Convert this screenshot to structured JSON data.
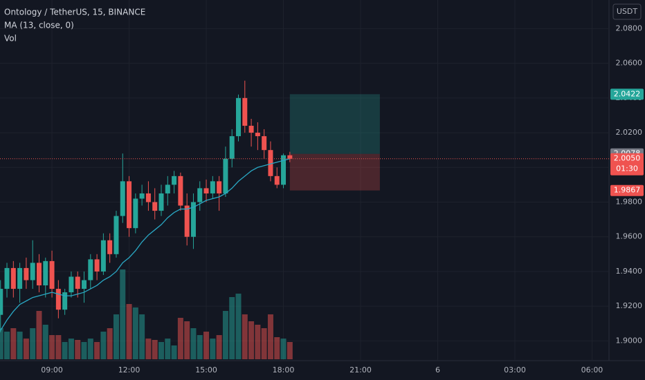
{
  "chart_data": {
    "type": "candlestick",
    "title": "Ontology / TetherUS, 15, BINANCE",
    "ma_label": "MA (13, close, 0)",
    "volume_label": "Vol",
    "currency": "USDT",
    "up_color": "#26a69a",
    "down_color": "#ef5350",
    "ma_color": "#2aa8c4",
    "grid": true,
    "x": [
      7,
      7.25,
      7.5,
      7.75,
      8,
      8.25,
      8.5,
      8.75,
      9,
      9.25,
      9.5,
      9.75,
      10,
      10.25,
      10.5,
      10.75,
      11,
      11.25,
      11.5,
      11.75,
      12,
      12.25,
      12.5,
      12.75,
      13,
      13.25,
      13.5,
      13.75,
      14,
      14.25,
      14.5,
      14.75,
      15,
      15.25,
      15.5,
      15.75,
      16,
      16.25,
      16.5,
      16.75,
      17,
      17.25,
      17.5,
      17.75,
      18,
      18.25
    ],
    "open": [
      1.915,
      1.93,
      1.942,
      1.93,
      1.942,
      1.935,
      1.945,
      1.932,
      1.946,
      1.93,
      1.918,
      1.928,
      1.937,
      1.93,
      1.935,
      1.947,
      1.94,
      1.958,
      1.95,
      1.972,
      1.992,
      1.965,
      1.982,
      1.985,
      1.98,
      1.975,
      1.985,
      1.99,
      1.995,
      1.978,
      1.96,
      1.98,
      1.988,
      1.985,
      1.992,
      1.985,
      2.005,
      2.018,
      2.04,
      2.024,
      2.02,
      2.018,
      2.01,
      1.995,
      1.99,
      2.007
    ],
    "high": [
      1.935,
      1.945,
      1.946,
      1.945,
      1.948,
      1.958,
      1.95,
      1.948,
      1.952,
      1.935,
      1.93,
      1.94,
      1.94,
      1.94,
      1.95,
      1.95,
      1.962,
      1.962,
      1.975,
      2.008,
      1.995,
      1.985,
      1.99,
      1.992,
      1.988,
      1.99,
      1.995,
      1.998,
      1.997,
      1.985,
      1.985,
      1.992,
      1.993,
      1.995,
      1.995,
      2.012,
      2.022,
      2.042,
      2.05,
      2.028,
      2.026,
      2.022,
      2.015,
      2,
      2.008,
      2.009
    ],
    "low": [
      1.905,
      1.925,
      1.925,
      1.922,
      1.93,
      1.93,
      1.928,
      1.925,
      1.925,
      1.913,
      1.915,
      1.925,
      1.925,
      1.922,
      1.93,
      1.935,
      1.938,
      1.945,
      1.948,
      1.968,
      1.96,
      1.962,
      1.978,
      1.975,
      1.97,
      1.972,
      1.978,
      1.985,
      1.975,
      1.955,
      1.953,
      1.975,
      1.98,
      1.982,
      1.975,
      1.983,
      2,
      2.015,
      2.02,
      2.012,
      2.01,
      2.005,
      1.992,
      1.988,
      1.988,
      2.003
    ],
    "close": [
      1.93,
      1.942,
      1.93,
      1.942,
      1.935,
      1.945,
      1.932,
      1.946,
      1.93,
      1.918,
      1.928,
      1.937,
      1.93,
      1.935,
      1.947,
      1.94,
      1.958,
      1.95,
      1.972,
      1.992,
      1.965,
      1.982,
      1.985,
      1.98,
      1.975,
      1.985,
      1.99,
      1.995,
      1.978,
      1.96,
      1.98,
      1.988,
      1.985,
      1.992,
      1.985,
      2.005,
      2.018,
      2.04,
      2.024,
      2.02,
      2.018,
      2.01,
      1.995,
      1.99,
      2.007,
      2.005
    ],
    "volume": [
      45,
      40,
      45,
      40,
      30,
      45,
      70,
      50,
      35,
      35,
      25,
      30,
      28,
      25,
      30,
      25,
      40,
      45,
      65,
      130,
      80,
      75,
      65,
      30,
      28,
      25,
      30,
      20,
      60,
      55,
      45,
      35,
      40,
      30,
      35,
      70,
      90,
      95,
      65,
      55,
      50,
      45,
      65,
      32,
      30,
      25
    ],
    "ma": [
      1.906,
      1.912,
      1.917,
      1.921,
      1.923,
      1.925,
      1.926,
      1.927,
      1.928,
      1.927,
      1.926,
      1.926,
      1.927,
      1.928,
      1.93,
      1.932,
      1.935,
      1.937,
      1.94,
      1.945,
      1.948,
      1.952,
      1.957,
      1.961,
      1.964,
      1.967,
      1.971,
      1.974,
      1.976,
      1.976,
      1.977,
      1.979,
      1.981,
      1.982,
      1.983,
      1.985,
      1.988,
      1.992,
      1.995,
      1.998,
      2,
      2.001,
      2.002,
      2.003,
      2.004,
      2.005
    ],
    "position": {
      "start": 18.25,
      "end": 21.75,
      "entry": 2.0078,
      "target": 2.0422,
      "stop": 1.9867
    },
    "last_price": 2.005,
    "countdown": "01:30",
    "price_labels": [
      {
        "value": 2.0422,
        "label": "2.0422",
        "color": "#26a69a"
      },
      {
        "value": 2.0078,
        "label": "2.0078",
        "color": "#787b86"
      },
      {
        "value": 2.005,
        "label": "2.0050",
        "color": "#ef5350"
      },
      {
        "value": 1.9867,
        "label": "1.9867",
        "color": "#ef5350"
      }
    ],
    "xlim": [
      6.98,
      30.66
    ],
    "xticks": [
      {
        "value": 9,
        "label": "09:00"
      },
      {
        "value": 12,
        "label": "12:00"
      },
      {
        "value": 15,
        "label": "15:00"
      },
      {
        "value": 18,
        "label": "18:00"
      },
      {
        "value": 21,
        "label": "21:00"
      },
      {
        "value": 24,
        "label": "6"
      },
      {
        "value": 27,
        "label": "03:00"
      },
      {
        "value": 30,
        "label": "06:00"
      }
    ],
    "ylim": [
      1.8886,
      2.0965
    ],
    "yticks": [
      {
        "value": 1.9,
        "label": "1.9000"
      },
      {
        "value": 1.92,
        "label": "1.9200"
      },
      {
        "value": 1.94,
        "label": "1.9400"
      },
      {
        "value": 1.96,
        "label": "1.9600"
      },
      {
        "value": 1.98,
        "label": "1.9800"
      },
      {
        "value": 2.0,
        "label": "2.0000"
      },
      {
        "value": 2.02,
        "label": "2.0200"
      },
      {
        "value": 2.04,
        "label": "2.0400"
      },
      {
        "value": 2.06,
        "label": "2.0600"
      },
      {
        "value": 2.08,
        "label": "2.0800"
      }
    ]
  }
}
